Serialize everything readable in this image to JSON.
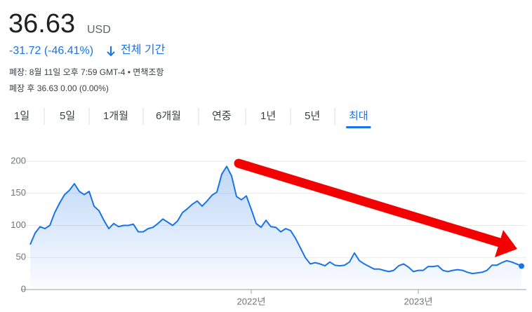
{
  "header": {
    "price": "36.63",
    "currency": "USD",
    "change": "-31.72 (-46.41%)",
    "period": "전체 기간",
    "closed": "폐장: 8월 11일 오후 7:59 GMT-4 • 면책조항",
    "after_hours": "폐장 후 36.63 0.00 (0.00%)"
  },
  "tabs": {
    "items": [
      "1일",
      "5일",
      "1개월",
      "6개월",
      "연중",
      "1년",
      "5년",
      "최대"
    ],
    "selected": 7
  },
  "chart_data": {
    "type": "line",
    "color": "#1a73e8",
    "categories": [
      null,
      null,
      null,
      null,
      null,
      null,
      null,
      null,
      null,
      null,
      null,
      null,
      null,
      null,
      null,
      null,
      null,
      null,
      null,
      null,
      null,
      null,
      null,
      null,
      null,
      null,
      null,
      null,
      null,
      null,
      null,
      null,
      null,
      null,
      null,
      null,
      null,
      null,
      null,
      null,
      null,
      null,
      null,
      null,
      null,
      "2022년",
      null,
      null,
      null,
      null,
      null,
      null,
      null,
      null,
      null,
      null,
      null,
      null,
      null,
      null,
      null,
      null,
      null,
      null,
      null,
      null,
      null,
      null,
      null,
      null,
      null,
      null,
      null,
      null,
      null,
      null,
      null,
      null,
      null,
      "2023년",
      null,
      null,
      null,
      null,
      null,
      null,
      null,
      null,
      null,
      null,
      null,
      null,
      null,
      null,
      null,
      null,
      null,
      null,
      null,
      null,
      null
    ],
    "values": [
      70,
      88,
      98,
      95,
      100,
      120,
      135,
      148,
      155,
      165,
      153,
      148,
      153,
      130,
      123,
      108,
      95,
      103,
      98,
      100,
      100,
      102,
      90,
      90,
      95,
      97,
      103,
      110,
      105,
      100,
      107,
      120,
      126,
      133,
      138,
      130,
      138,
      147,
      152,
      180,
      192,
      177,
      145,
      140,
      146,
      125,
      103,
      97,
      108,
      98,
      97,
      90,
      95,
      92,
      80,
      65,
      50,
      40,
      42,
      40,
      37,
      43,
      38,
      37,
      38,
      43,
      57,
      45,
      40,
      36,
      32,
      32,
      30,
      28,
      30,
      37,
      40,
      35,
      28,
      30,
      30,
      36,
      36,
      37,
      30,
      28,
      30,
      31,
      30,
      27,
      25,
      26,
      27,
      30,
      38,
      38,
      42,
      45,
      43,
      40,
      36.63
    ],
    "ylim": [
      0,
      200
    ],
    "yticks": [
      0,
      50,
      100,
      150,
      200
    ],
    "grid": true
  }
}
